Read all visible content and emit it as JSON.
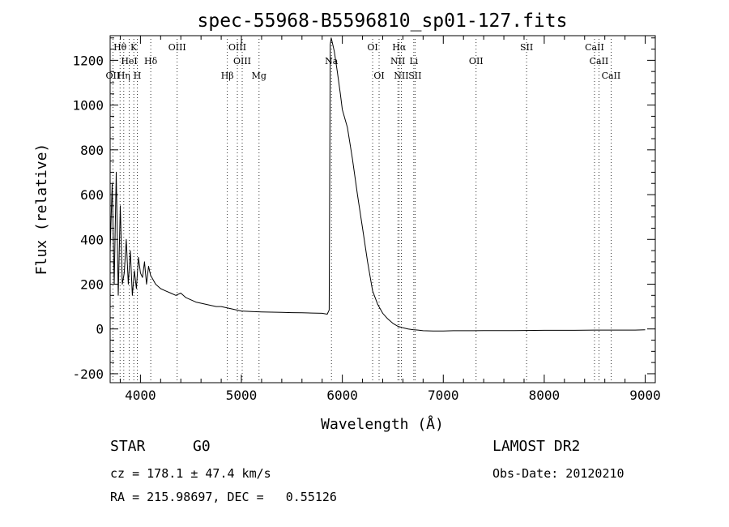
{
  "chart_data": {
    "type": "line",
    "title": "spec-55968-B5596810_sp01-127.fits",
    "xlabel": "Wavelength (Å)",
    "ylabel": "Flux (relative)",
    "xlim": [
      3700,
      9100
    ],
    "ylim": [
      -240,
      1310
    ],
    "xticks": [
      4000,
      5000,
      6000,
      7000,
      8000,
      9000
    ],
    "yticks": [
      -200,
      0,
      200,
      400,
      600,
      800,
      1000,
      1200
    ],
    "grid": false,
    "line_color": "#000000",
    "series": [
      {
        "x": [
          3700,
          3720,
          3740,
          3760,
          3780,
          3800,
          3820,
          3840,
          3860,
          3880,
          3900,
          3920,
          3940,
          3960,
          3980,
          4000,
          4020,
          4040,
          4060,
          4080,
          4100,
          4150,
          4200,
          4250,
          4300,
          4350,
          4400,
          4450,
          4500,
          4550,
          4600,
          4650,
          4700,
          4750,
          4800,
          4850,
          4900,
          4950,
          5000,
          5100,
          5200,
          5300,
          5400,
          5500,
          5600,
          5700,
          5800,
          5850,
          5870,
          5880,
          5890,
          5900,
          5920,
          5950,
          5980,
          6000,
          6050,
          6100,
          6150,
          6200,
          6250,
          6300,
          6350,
          6400,
          6450,
          6500,
          6550,
          6600,
          6650,
          6700,
          6750,
          6800,
          6900,
          7000,
          7100,
          7200,
          7300,
          7400,
          7500,
          7700,
          8000,
          8300,
          8500,
          8700,
          8900,
          9000
        ],
        "y": [
          350,
          650,
          200,
          700,
          150,
          550,
          200,
          250,
          400,
          200,
          350,
          150,
          260,
          180,
          320,
          250,
          230,
          300,
          200,
          280,
          240,
          200,
          180,
          170,
          160,
          150,
          160,
          140,
          130,
          120,
          115,
          110,
          105,
          100,
          100,
          95,
          90,
          85,
          80,
          78,
          76,
          75,
          74,
          73,
          72,
          71,
          70,
          66,
          85,
          1270,
          1300,
          1280,
          1240,
          1150,
          1050,
          980,
          900,
          760,
          600,
          450,
          300,
          170,
          110,
          70,
          45,
          25,
          12,
          5,
          0,
          -3,
          -5,
          -8,
          -9,
          -9,
          -8,
          -8,
          -8,
          -7,
          -7,
          -7,
          -6,
          -6,
          -5,
          -5,
          -5,
          -4
        ]
      }
    ],
    "lines": [
      {
        "label": "Hθ",
        "wl": 3798,
        "row": 0
      },
      {
        "label": "K",
        "wl": 3934,
        "row": 0
      },
      {
        "label": "OIII",
        "wl": 4364,
        "row": 0
      },
      {
        "label": "OIII",
        "wl": 4960,
        "row": 0
      },
      {
        "label": "OI",
        "wl": 6300,
        "row": 0
      },
      {
        "label": "Hα",
        "wl": 6563,
        "row": 0
      },
      {
        "label": "SII",
        "wl": 7825,
        "row": 0
      },
      {
        "label": "CaII",
        "wl": 8498,
        "row": 0
      },
      {
        "label": "HeI",
        "wl": 3889,
        "row": 1
      },
      {
        "label": "Hδ",
        "wl": 4102,
        "row": 1
      },
      {
        "label": "OIII",
        "wl": 5008,
        "row": 1
      },
      {
        "label": "Na",
        "wl": 5892,
        "row": 1
      },
      {
        "label": "NII",
        "wl": 6550,
        "row": 1
      },
      {
        "label": "Li",
        "wl": 6708,
        "row": 1
      },
      {
        "label": "OII",
        "wl": 7325,
        "row": 1
      },
      {
        "label": "CaII",
        "wl": 8542,
        "row": 1
      },
      {
        "label": "OII",
        "wl": 3727,
        "row": 2
      },
      {
        "label": "Hη",
        "wl": 3835,
        "row": 2
      },
      {
        "label": "H",
        "wl": 3969,
        "row": 2
      },
      {
        "label": "Hβ",
        "wl": 4861,
        "row": 2
      },
      {
        "label": "Mg",
        "wl": 5175,
        "row": 2
      },
      {
        "label": "OI",
        "wl": 6364,
        "row": 2
      },
      {
        "label": "NII",
        "wl": 6584,
        "row": 2
      },
      {
        "label": "SII",
        "wl": 6720,
        "row": 2
      },
      {
        "label": "CaII",
        "wl": 8662,
        "row": 2
      }
    ]
  },
  "info": {
    "class_label": "STAR",
    "subclass": "G0",
    "survey": "LAMOST DR2",
    "redshift_line": "cz = 178.1 ± 47.4 km/s",
    "obs_date": "Obs-Date: 20120210",
    "position_line": "RA = 215.98697, DEC =   0.55126"
  }
}
